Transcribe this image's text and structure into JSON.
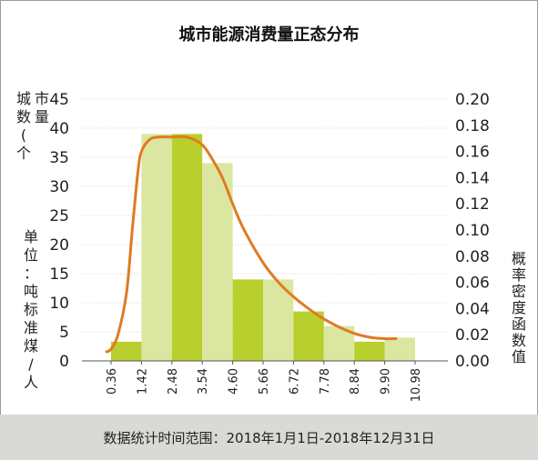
{
  "title": "城市能源消费量正态分布",
  "footer": "数据统计时间范围：2018年1月1日-2018年12月31日",
  "chart_data": {
    "type": "bar",
    "title": "城市能源消费量正态分布",
    "y_left_label": "城市数量(个)",
    "unit_label": "单位：吨标准煤/人",
    "y_right_label": "概率密度函数值",
    "x_ticks": [
      "0.36",
      "1.42",
      "2.48",
      "3.54",
      "4.60",
      "5.66",
      "6.72",
      "7.78",
      "8.84",
      "9.90",
      "10.98"
    ],
    "y_left_ticks": [
      "0",
      "5",
      "10",
      "15",
      "20",
      "25",
      "30",
      "35",
      "40",
      "45"
    ],
    "y_right_ticks": [
      "0.00",
      "0.02",
      "0.04",
      "0.06",
      "0.08",
      "0.10",
      "0.12",
      "0.14",
      "0.16",
      "0.18",
      "0.20"
    ],
    "y_left_range": [
      0,
      45
    ],
    "y_right_range": [
      0,
      0.2
    ],
    "grid": "horizontal",
    "bars": [
      3.3,
      39,
      39,
      34,
      14,
      14,
      8.5,
      6,
      3.3,
      4
    ],
    "bar_colors": [
      "#b9cf2d",
      "#dbe7a0",
      "#b9cf2d",
      "#dbe7a0",
      "#b9cf2d",
      "#dbe7a0",
      "#b9cf2d",
      "#dbe7a0",
      "#b9cf2d",
      "#dbe7a0"
    ],
    "curve": {
      "color": "#e07b22",
      "x": [
        0.2,
        0.36,
        0.6,
        0.9,
        1.1,
        1.3,
        1.42,
        1.7,
        2.0,
        2.48,
        3.0,
        3.54,
        4.0,
        4.3,
        4.6,
        5.0,
        5.66,
        6.2,
        6.72,
        7.3,
        7.78,
        8.3,
        8.84,
        9.4,
        9.9,
        10.3
      ],
      "y": [
        0.007,
        0.009,
        0.02,
        0.052,
        0.1,
        0.145,
        0.16,
        0.169,
        0.171,
        0.171,
        0.171,
        0.165,
        0.15,
        0.137,
        0.12,
        0.1,
        0.075,
        0.06,
        0.049,
        0.039,
        0.032,
        0.026,
        0.021,
        0.018,
        0.017,
        0.017
      ]
    }
  }
}
